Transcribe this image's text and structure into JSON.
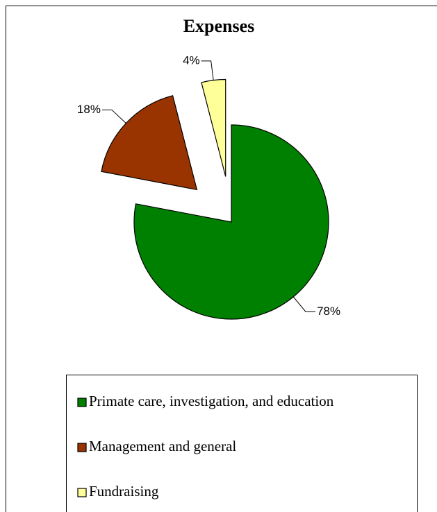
{
  "chart_data": {
    "type": "pie",
    "title": "Expenses",
    "categories": [
      "Primate care, investigation, and education",
      "Management and general",
      "Fundraising"
    ],
    "values": [
      78,
      18,
      4
    ],
    "value_labels": [
      "78%",
      "18%",
      "4%"
    ],
    "colors": [
      "#008000",
      "#993300",
      "#ffff99"
    ],
    "legend": "bottom"
  }
}
